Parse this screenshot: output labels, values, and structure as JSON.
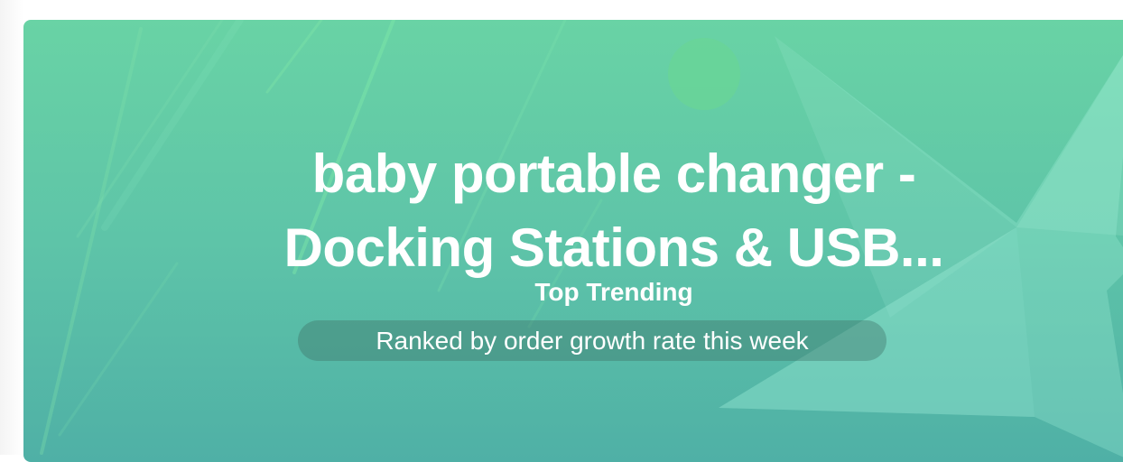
{
  "banner": {
    "title": "baby portable changer - Docking Stations & USB...",
    "subtitle": "Top Trending",
    "description": "Ranked by order growth rate this week",
    "colors": {
      "gradient_top": "#69d3a5",
      "gradient_bottom": "#4fb0a6",
      "text": "#ffffff"
    },
    "decoration": "star-icon"
  }
}
